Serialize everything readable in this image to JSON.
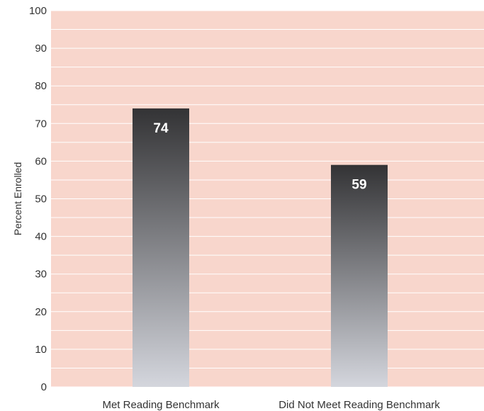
{
  "chart_data": {
    "type": "bar",
    "title": "",
    "xlabel": "",
    "ylabel": "Percent Enrolled",
    "ylim": [
      0,
      100
    ],
    "yticks": [
      0,
      10,
      20,
      30,
      40,
      50,
      60,
      70,
      80,
      90,
      100
    ],
    "categories": [
      "Met Reading Benchmark",
      "Did Not Meet Reading Benchmark"
    ],
    "values": [
      74,
      59
    ],
    "data_labels": [
      "74",
      "59"
    ],
    "grid": true,
    "minor_grid": true,
    "legend": "none",
    "colors": {
      "plot_background": "#f8d6cc",
      "gridline": "#ffffff",
      "bar_top": "#333335",
      "bar_bottom": "#d4d6dd",
      "label_text": "#ffffff",
      "axis_text": "#333333"
    }
  }
}
